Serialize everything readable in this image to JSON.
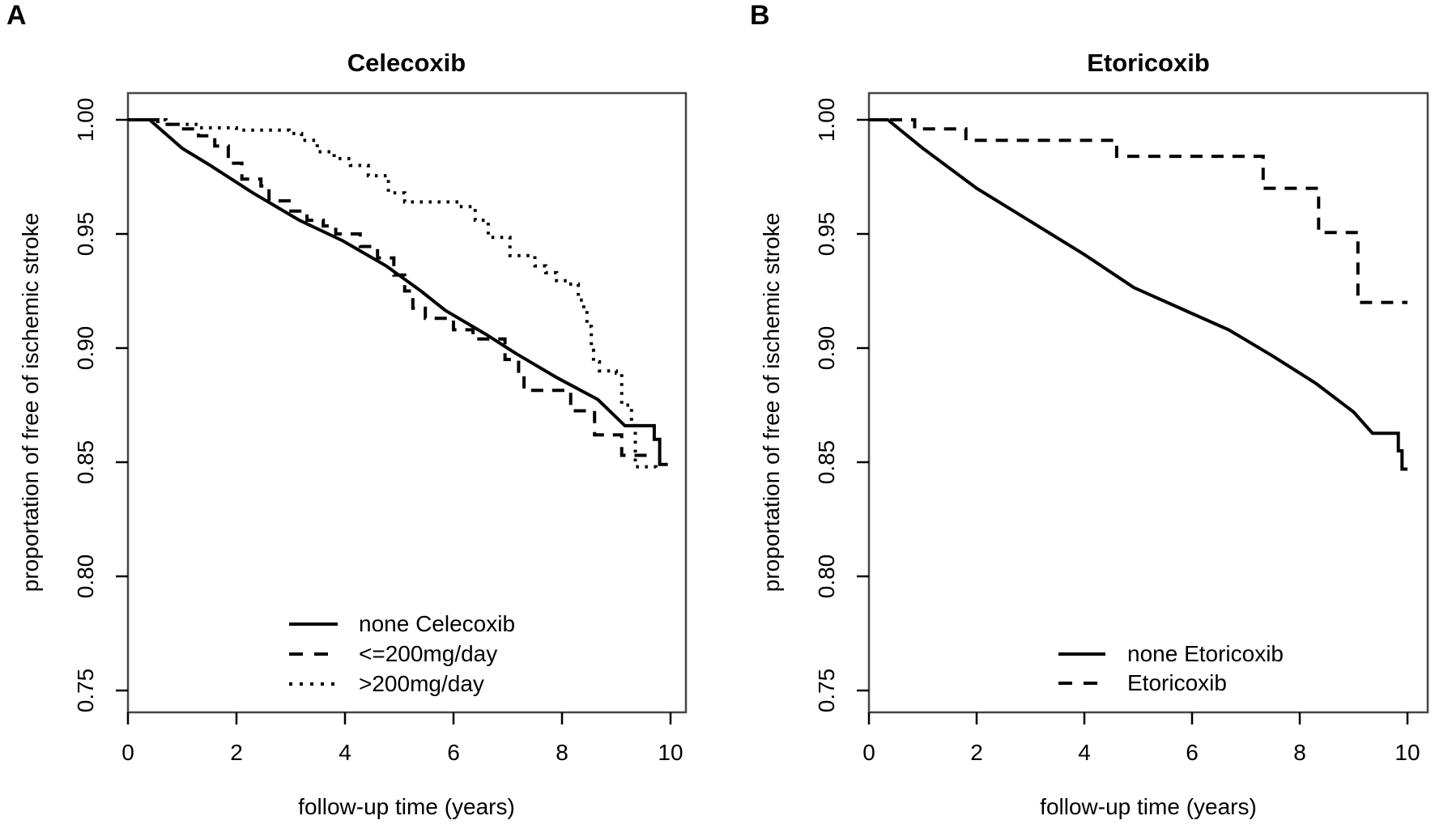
{
  "figure": {
    "background": "#ffffff",
    "line_color": "#000000",
    "frame_color": "#454545",
    "panels": [
      {
        "panel_label": "A",
        "title": "Celecoxib",
        "xlabel": "follow-up time (years)",
        "ylabel": "proportation of free of ischemic stroke"
      },
      {
        "panel_label": "B",
        "title": "Etoricoxib",
        "xlabel": "follow-up time (years)",
        "ylabel": "proportation of free of ischemic stroke"
      }
    ]
  },
  "chart_data": [
    {
      "type": "line",
      "title": "Celecoxib",
      "xlabel": "follow-up time (years)",
      "ylabel": "proportation of free of ischemic stroke",
      "xlim": [
        0,
        10.3
      ],
      "ylim": [
        0.74,
        1.012
      ],
      "xticks": [
        "0",
        "2",
        "4",
        "6",
        "8",
        "10"
      ],
      "yticks": [
        "0.75",
        "0.80",
        "0.85",
        "0.90",
        "0.95",
        "1.00"
      ],
      "grid": false,
      "legend_position": "bottom-center-inside",
      "series": [
        {
          "name": "none Celecoxib",
          "line_style": "solid",
          "step": false,
          "points": [
            [
              0,
              1
            ],
            [
              0.4,
              1
            ],
            [
              1,
              0.9875
            ],
            [
              1.52,
              0.98
            ],
            [
              2.3,
              0.968
            ],
            [
              3.16,
              0.956
            ],
            [
              3.96,
              0.947
            ],
            [
              4.76,
              0.936
            ],
            [
              5.4,
              0.925
            ],
            [
              5.85,
              0.9165
            ],
            [
              6.6,
              0.906
            ],
            [
              7.16,
              0.8975
            ],
            [
              7.91,
              0.887
            ],
            [
              8.66,
              0.8775
            ],
            [
              9.16,
              0.866
            ],
            [
              9.7,
              0.866
            ],
            [
              9.7,
              0.86
            ],
            [
              9.8,
              0.86
            ],
            [
              9.8,
              0.849
            ],
            [
              9.95,
              0.849
            ]
          ]
        },
        {
          "name": "<=200mg/day",
          "line_style": "dashed",
          "step": true,
          "points": [
            [
              0,
              1
            ],
            [
              0.55,
              0.998
            ],
            [
              0.9,
              0.996
            ],
            [
              1.3,
              0.993
            ],
            [
              1.6,
              0.9885
            ],
            [
              1.85,
              0.981
            ],
            [
              2.1,
              0.974
            ],
            [
              2.45,
              0.971
            ],
            [
              2.6,
              0.9645
            ],
            [
              2.97,
              0.96
            ],
            [
              3.3,
              0.956
            ],
            [
              3.6,
              0.9535
            ],
            [
              3.83,
              0.95
            ],
            [
              4.28,
              0.9445
            ],
            [
              4.6,
              0.9395
            ],
            [
              4.9,
              0.932
            ],
            [
              5.1,
              0.925
            ],
            [
              5.25,
              0.9175
            ],
            [
              5.48,
              0.913
            ],
            [
              6.0,
              0.908
            ],
            [
              6.36,
              0.904
            ],
            [
              6.95,
              0.895
            ],
            [
              7.2,
              0.889
            ],
            [
              7.3,
              0.8815
            ],
            [
              8.16,
              0.8725
            ],
            [
              8.6,
              0.862
            ],
            [
              9.1,
              0.853
            ],
            [
              9.7,
              0.853
            ]
          ]
        },
        {
          "name": ">200mg/day",
          "line_style": "dotted",
          "step": true,
          "points": [
            [
              0,
              1
            ],
            [
              0.7,
              0.998
            ],
            [
              1.3,
              0.9965
            ],
            [
              2.0,
              0.9955
            ],
            [
              2.97,
              0.994
            ],
            [
              3.2,
              0.991
            ],
            [
              3.49,
              0.986
            ],
            [
              3.8,
              0.983
            ],
            [
              4.1,
              0.98
            ],
            [
              4.43,
              0.9755
            ],
            [
              4.8,
              0.968
            ],
            [
              5.1,
              0.964
            ],
            [
              6.1,
              0.962
            ],
            [
              6.4,
              0.956
            ],
            [
              6.64,
              0.9485
            ],
            [
              7.04,
              0.9405
            ],
            [
              7.5,
              0.936
            ],
            [
              7.7,
              0.933
            ],
            [
              7.9,
              0.9295
            ],
            [
              8.1,
              0.928
            ],
            [
              8.3,
              0.921
            ],
            [
              8.4,
              0.9165
            ],
            [
              8.46,
              0.9095
            ],
            [
              8.54,
              0.899
            ],
            [
              8.58,
              0.894
            ],
            [
              8.69,
              0.89
            ],
            [
              9.0,
              0.889
            ],
            [
              9.1,
              0.875
            ],
            [
              9.28,
              0.866
            ],
            [
              9.35,
              0.848
            ],
            [
              9.73,
              0.847
            ]
          ]
        }
      ]
    },
    {
      "type": "line",
      "title": "Etoricoxib",
      "xlabel": "follow-up time (years)",
      "ylabel": "proportation of free of ischemic stroke",
      "xlim": [
        0,
        10.3
      ],
      "ylim": [
        0.74,
        1.012
      ],
      "xticks": [
        "0",
        "2",
        "4",
        "6",
        "8",
        "10"
      ],
      "yticks": [
        "0.75",
        "0.80",
        "0.85",
        "0.90",
        "0.95",
        "1.00"
      ],
      "grid": false,
      "legend_position": "bottom-center-inside",
      "series": [
        {
          "name": "none Etoricoxib",
          "line_style": "solid",
          "step": false,
          "points": [
            [
              0,
              1
            ],
            [
              0.35,
              1
            ],
            [
              1,
              0.9875
            ],
            [
              2,
              0.97
            ],
            [
              3,
              0.9555
            ],
            [
              4,
              0.941
            ],
            [
              4.92,
              0.9265
            ],
            [
              5.87,
              0.9165
            ],
            [
              6.68,
              0.908
            ],
            [
              7.5,
              0.8965
            ],
            [
              8.3,
              0.8845
            ],
            [
              9.0,
              0.872
            ],
            [
              9.35,
              0.8627
            ],
            [
              9.83,
              0.8627
            ],
            [
              9.83,
              0.855
            ],
            [
              9.9,
              0.855
            ],
            [
              9.9,
              0.847
            ],
            [
              10,
              0.847
            ]
          ]
        },
        {
          "name": "Etoricoxib",
          "line_style": "dashed",
          "step": true,
          "points": [
            [
              0,
              1
            ],
            [
              0.85,
              0.996
            ],
            [
              1.8,
              0.991
            ],
            [
              4.6,
              0.984
            ],
            [
              7.32,
              0.97
            ],
            [
              8.35,
              0.9506
            ],
            [
              9.08,
              0.92
            ],
            [
              10,
              0.92
            ]
          ]
        }
      ]
    }
  ]
}
